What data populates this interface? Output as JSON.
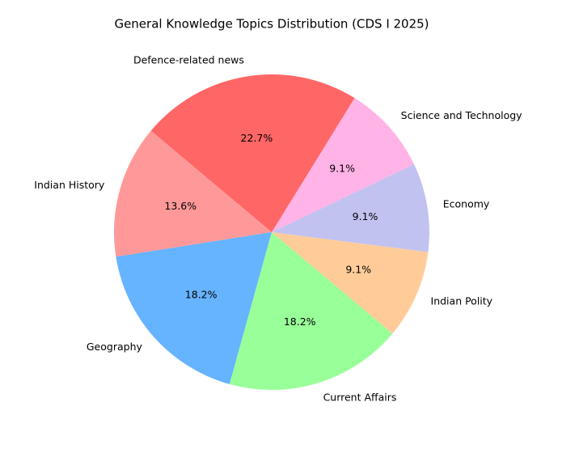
{
  "chart_data": {
    "type": "pie",
    "title": "General Knowledge Topics Distribution (CDS I 2025)",
    "categories": [
      "Indian History",
      "Geography",
      "Current Affairs",
      "Indian Polity",
      "Economy",
      "Science and Technology",
      "Defence-related news"
    ],
    "values": [
      13.6,
      18.2,
      18.2,
      9.1,
      9.1,
      9.1,
      22.7
    ],
    "value_labels": [
      "13.6%",
      "18.2%",
      "18.2%",
      "9.1%",
      "9.1%",
      "9.1%",
      "22.7%"
    ],
    "colors": [
      "#ff9999",
      "#66b3ff",
      "#99ff99",
      "#ffcc99",
      "#c2c2f0",
      "#ffb3e6",
      "#ff6666"
    ]
  }
}
